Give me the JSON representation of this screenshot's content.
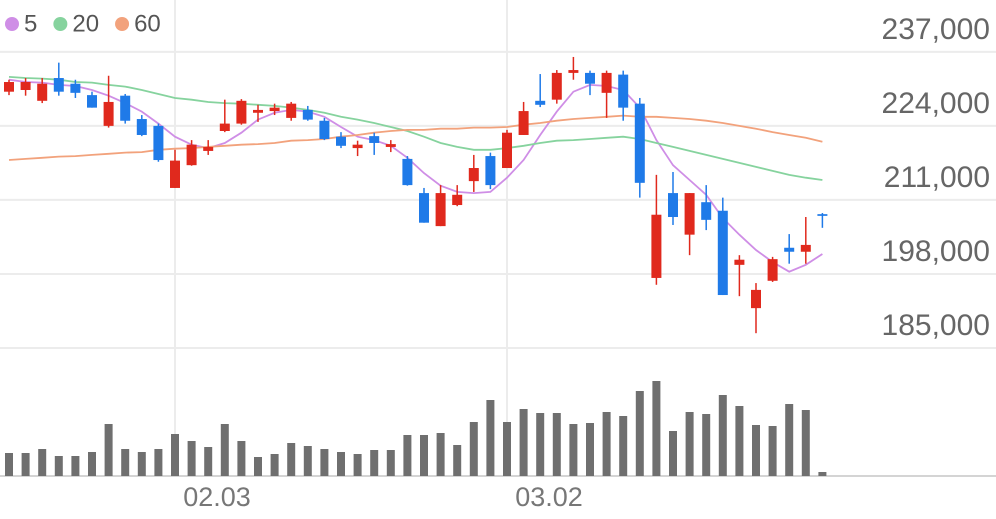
{
  "chart_data": {
    "type": "candlestick",
    "categories": [
      null,
      null,
      null,
      null,
      null,
      null,
      null,
      null,
      null,
      null,
      "02.03",
      null,
      null,
      null,
      null,
      null,
      null,
      null,
      null,
      null,
      null,
      null,
      null,
      null,
      null,
      null,
      null,
      null,
      null,
      null,
      "03.02",
      null,
      null,
      null,
      null,
      null,
      null,
      null,
      null,
      null,
      null,
      null,
      null,
      null,
      null,
      null,
      null,
      null,
      null,
      null
    ],
    "open": [
      230000,
      230300,
      228400,
      232400,
      231400,
      229400,
      224000,
      229300,
      225200,
      224000,
      213100,
      217100,
      219600,
      223100,
      224400,
      226300,
      226600,
      225400,
      226800,
      224900,
      222100,
      220100,
      222200,
      220300,
      218200,
      212200,
      206400,
      210100,
      214300,
      218700,
      216600,
      222400,
      228400,
      228600,
      233300,
      233300,
      229800,
      233000,
      227900,
      197300,
      212200,
      204900,
      210600,
      209100,
      199600,
      192000,
      196800,
      202600,
      201900,
      208500
    ],
    "high": [
      232100,
      232400,
      232400,
      235100,
      232100,
      230000,
      232800,
      229600,
      225900,
      224400,
      219800,
      221500,
      221500,
      228600,
      228700,
      227700,
      227900,
      228200,
      227500,
      225400,
      222900,
      221400,
      222800,
      221500,
      218700,
      213100,
      213600,
      213600,
      218900,
      219300,
      223300,
      228200,
      233100,
      233800,
      236100,
      233700,
      233700,
      233700,
      228900,
      215400,
      215900,
      212200,
      213600,
      211400,
      201300,
      196400,
      201000,
      205000,
      208000,
      208700
    ],
    "low": [
      229400,
      229300,
      228000,
      229300,
      228900,
      227200,
      223700,
      224400,
      222200,
      217700,
      213100,
      217000,
      218900,
      222900,
      224200,
      224700,
      225900,
      224900,
      224900,
      221500,
      220100,
      218700,
      218900,
      219400,
      213500,
      207000,
      206400,
      209900,
      212400,
      212900,
      216600,
      222400,
      227300,
      227900,
      232100,
      229400,
      225400,
      224900,
      211400,
      196100,
      206600,
      201300,
      205700,
      194300,
      194100,
      187600,
      196600,
      199800,
      199800,
      206100
    ],
    "close": [
      231700,
      231700,
      231400,
      230000,
      229800,
      227200,
      228200,
      224900,
      222400,
      218000,
      217900,
      220700,
      220300,
      224400,
      228400,
      226800,
      227200,
      227900,
      225100,
      221700,
      220500,
      220700,
      221000,
      220800,
      213600,
      207000,
      212200,
      211900,
      216600,
      213600,
      222800,
      226600,
      227700,
      233300,
      233800,
      231400,
      233300,
      227200,
      214000,
      208400,
      208000,
      212200,
      207500,
      194300,
      200500,
      195200,
      200600,
      201900,
      203100,
      208200
    ],
    "up_color": "#e0291d",
    "down_color": "#1f7ae8",
    "series": [
      {
        "name": "5",
        "color": "#cf8ee6",
        "values": [
          232100,
          231700,
          231600,
          231200,
          231000,
          230300,
          229300,
          228000,
          226500,
          224400,
          222100,
          220700,
          220100,
          221000,
          222800,
          225100,
          226300,
          226800,
          226500,
          225600,
          223800,
          222100,
          221500,
          220500,
          218400,
          215700,
          213500,
          212400,
          212200,
          212400,
          214900,
          218000,
          222400,
          226500,
          230000,
          231200,
          231000,
          230300,
          227200,
          221500,
          217100,
          214500,
          211900,
          207800,
          204900,
          202200,
          200100,
          198400,
          199600,
          201500
        ]
      },
      {
        "name": "20",
        "color": "#86d39e",
        "values": [
          232600,
          232400,
          232300,
          232100,
          231700,
          231600,
          231200,
          230900,
          230300,
          229600,
          228900,
          228600,
          228200,
          228000,
          227900,
          227700,
          227500,
          227200,
          226800,
          226300,
          225600,
          225100,
          224500,
          223800,
          223100,
          222100,
          221000,
          220300,
          219800,
          219800,
          220100,
          220500,
          221000,
          221400,
          221500,
          221700,
          221900,
          222100,
          221700,
          221000,
          220300,
          219600,
          218900,
          218200,
          217500,
          216800,
          216100,
          215400,
          214900,
          214500
        ]
      },
      {
        "name": "60",
        "color": "#f2a27c",
        "values": [
          218000,
          218200,
          218400,
          218600,
          218700,
          218900,
          219100,
          219300,
          219400,
          219800,
          220000,
          220100,
          220300,
          220500,
          220700,
          220800,
          221000,
          221400,
          221500,
          221700,
          222100,
          222400,
          222800,
          223100,
          223300,
          223300,
          223500,
          223500,
          223700,
          223700,
          223800,
          224200,
          224500,
          224900,
          225200,
          225400,
          225600,
          225800,
          225600,
          225600,
          225400,
          225200,
          224900,
          224500,
          224000,
          223500,
          222900,
          222400,
          221900,
          221200
        ]
      }
    ],
    "ylim": [
      185000,
      246100
    ],
    "yticks": [
      {
        "value": 185000,
        "label": "185,000"
      },
      {
        "value": 198000,
        "label": "198,000"
      },
      {
        "value": 211000,
        "label": "211,000"
      },
      {
        "value": 224000,
        "label": "224,000"
      },
      {
        "value": 237000,
        "label": "237,000"
      }
    ],
    "grid": true,
    "volume": {
      "color": "#6f6f6f",
      "vlim": [
        0,
        100
      ],
      "values": [
        23,
        23,
        27,
        20,
        20,
        24,
        52,
        27,
        24,
        27,
        42,
        35,
        29,
        52,
        35,
        19,
        22,
        33,
        30,
        27,
        24,
        22,
        26,
        26,
        41,
        41,
        43,
        31,
        54,
        76,
        54,
        67,
        63,
        63,
        52,
        53,
        64,
        60,
        85,
        95,
        45,
        64,
        62,
        81,
        70,
        51,
        50,
        72,
        66,
        4
      ]
    }
  }
}
